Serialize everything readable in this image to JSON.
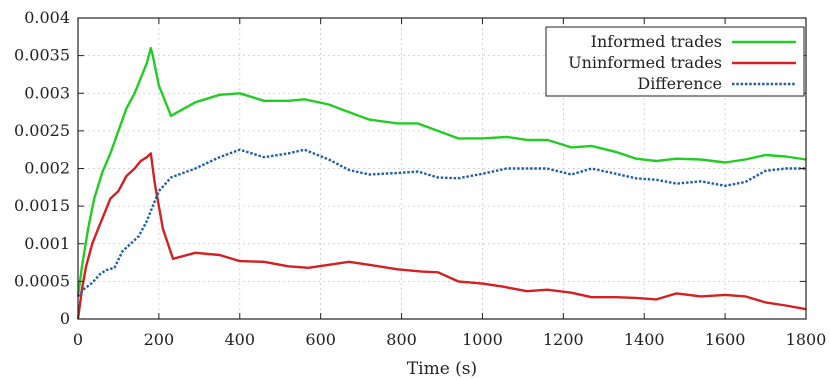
{
  "chart_data": {
    "type": "line",
    "xlabel": "Time (s)",
    "ylabel": "",
    "xlim": [
      0,
      1800
    ],
    "ylim": [
      0,
      0.004
    ],
    "x_ticks": [
      "0",
      "200",
      "400",
      "600",
      "800",
      "1000",
      "1200",
      "1400",
      "1600",
      "1800"
    ],
    "y_ticks": [
      "0",
      "0.0005",
      "0.001",
      "0.0015",
      "0.002",
      "0.0025",
      "0.003",
      "0.0035",
      "0.004"
    ],
    "grid": true,
    "legend_position": "top-right",
    "series": [
      {
        "name": "Informed trades",
        "color": "#22cc22",
        "style": "solid",
        "points": [
          [
            0,
            0.0003
          ],
          [
            10,
            0.0007
          ],
          [
            25,
            0.0012
          ],
          [
            40,
            0.0016
          ],
          [
            60,
            0.00195
          ],
          [
            80,
            0.0022
          ],
          [
            100,
            0.0025
          ],
          [
            120,
            0.0028
          ],
          [
            140,
            0.003
          ],
          [
            155,
            0.0032
          ],
          [
            170,
            0.0034
          ],
          [
            180,
            0.0036
          ],
          [
            185,
            0.0035
          ],
          [
            200,
            0.0031
          ],
          [
            230,
            0.0027
          ],
          [
            290,
            0.00288
          ],
          [
            350,
            0.00298
          ],
          [
            400,
            0.003
          ],
          [
            460,
            0.0029
          ],
          [
            520,
            0.0029
          ],
          [
            560,
            0.00292
          ],
          [
            620,
            0.00285
          ],
          [
            670,
            0.00275
          ],
          [
            720,
            0.00265
          ],
          [
            790,
            0.0026
          ],
          [
            840,
            0.0026
          ],
          [
            890,
            0.0025
          ],
          [
            940,
            0.0024
          ],
          [
            1000,
            0.0024
          ],
          [
            1060,
            0.00242
          ],
          [
            1110,
            0.00238
          ],
          [
            1160,
            0.00238
          ],
          [
            1220,
            0.00228
          ],
          [
            1270,
            0.0023
          ],
          [
            1330,
            0.00222
          ],
          [
            1380,
            0.00213
          ],
          [
            1430,
            0.0021
          ],
          [
            1480,
            0.00213
          ],
          [
            1540,
            0.00212
          ],
          [
            1600,
            0.00208
          ],
          [
            1650,
            0.00212
          ],
          [
            1700,
            0.00218
          ],
          [
            1750,
            0.00216
          ],
          [
            1800,
            0.00212
          ]
        ]
      },
      {
        "name": "Uninformed trades",
        "color": "#d42020",
        "style": "solid",
        "points": [
          [
            0,
            0
          ],
          [
            10,
            0.0004
          ],
          [
            20,
            0.0007
          ],
          [
            35,
            0.001
          ],
          [
            50,
            0.0012
          ],
          [
            65,
            0.0014
          ],
          [
            80,
            0.0016
          ],
          [
            100,
            0.0017
          ],
          [
            120,
            0.0019
          ],
          [
            140,
            0.002
          ],
          [
            155,
            0.0021
          ],
          [
            170,
            0.00215
          ],
          [
            180,
            0.0022
          ],
          [
            190,
            0.0018
          ],
          [
            210,
            0.0012
          ],
          [
            235,
            0.0008
          ],
          [
            290,
            0.00088
          ],
          [
            350,
            0.00085
          ],
          [
            400,
            0.00077
          ],
          [
            460,
            0.00076
          ],
          [
            520,
            0.0007
          ],
          [
            570,
            0.00068
          ],
          [
            620,
            0.00072
          ],
          [
            670,
            0.00076
          ],
          [
            720,
            0.00072
          ],
          [
            790,
            0.00066
          ],
          [
            850,
            0.00063
          ],
          [
            890,
            0.00062
          ],
          [
            940,
            0.0005
          ],
          [
            1000,
            0.00047
          ],
          [
            1050,
            0.00043
          ],
          [
            1110,
            0.00037
          ],
          [
            1160,
            0.00039
          ],
          [
            1220,
            0.00035
          ],
          [
            1270,
            0.00029
          ],
          [
            1330,
            0.00029
          ],
          [
            1380,
            0.00028
          ],
          [
            1430,
            0.00026
          ],
          [
            1480,
            0.00034
          ],
          [
            1540,
            0.0003
          ],
          [
            1600,
            0.00032
          ],
          [
            1650,
            0.0003
          ],
          [
            1700,
            0.00022
          ],
          [
            1750,
            0.00018
          ],
          [
            1800,
            0.00013
          ]
        ]
      },
      {
        "name": "Difference",
        "color": "#1f5fa8",
        "style": "dotted",
        "points": [
          [
            0,
            0.0003
          ],
          [
            15,
            0.0004
          ],
          [
            35,
            0.00048
          ],
          [
            55,
            0.0006
          ],
          [
            70,
            0.00065
          ],
          [
            90,
            0.00068
          ],
          [
            110,
            0.0009
          ],
          [
            130,
            0.001
          ],
          [
            150,
            0.0011
          ],
          [
            170,
            0.0013
          ],
          [
            185,
            0.0015
          ],
          [
            200,
            0.0017
          ],
          [
            230,
            0.00188
          ],
          [
            290,
            0.002
          ],
          [
            350,
            0.00215
          ],
          [
            400,
            0.00225
          ],
          [
            460,
            0.00215
          ],
          [
            520,
            0.0022
          ],
          [
            560,
            0.00225
          ],
          [
            620,
            0.00212
          ],
          [
            670,
            0.00198
          ],
          [
            720,
            0.00192
          ],
          [
            790,
            0.00194
          ],
          [
            840,
            0.00196
          ],
          [
            890,
            0.00188
          ],
          [
            940,
            0.00187
          ],
          [
            1000,
            0.00193
          ],
          [
            1060,
            0.002
          ],
          [
            1110,
            0.002
          ],
          [
            1160,
            0.002
          ],
          [
            1220,
            0.00192
          ],
          [
            1270,
            0.002
          ],
          [
            1330,
            0.00193
          ],
          [
            1380,
            0.00187
          ],
          [
            1430,
            0.00185
          ],
          [
            1480,
            0.0018
          ],
          [
            1540,
            0.00183
          ],
          [
            1600,
            0.00177
          ],
          [
            1650,
            0.00182
          ],
          [
            1700,
            0.00197
          ],
          [
            1750,
            0.002
          ],
          [
            1800,
            0.002
          ]
        ]
      }
    ]
  }
}
